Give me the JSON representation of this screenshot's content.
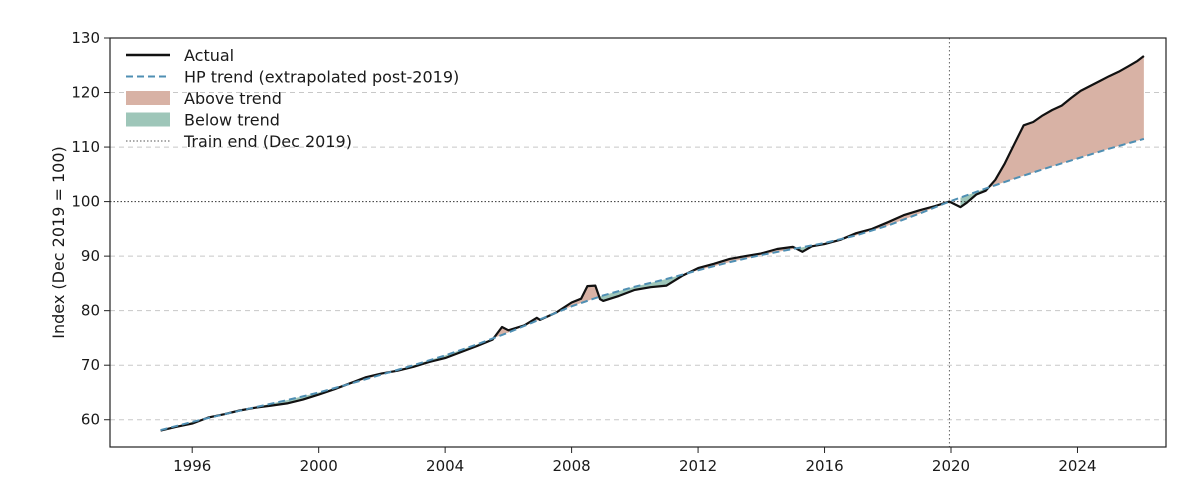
{
  "chart_data": {
    "type": "line",
    "title": "",
    "xlabel": "",
    "ylabel": "Index (Dec 2019 = 100)",
    "xlim": [
      1993.4,
      2026.8
    ],
    "ylim": [
      55,
      130
    ],
    "x_ticks": [
      1996,
      2000,
      2004,
      2008,
      2012,
      2016,
      2020,
      2024
    ],
    "y_ticks": [
      60,
      70,
      80,
      90,
      100,
      110,
      120,
      130
    ],
    "grid": "y-dashed",
    "legend_position": "top-left",
    "reference_lines": {
      "horizontal_y": 100,
      "vertical_x": 2019.95,
      "vertical_label": "Train end (Dec 2019)"
    },
    "legend": [
      {
        "key": "actual",
        "label": "Actual",
        "kind": "line",
        "color": "#111111"
      },
      {
        "key": "trend",
        "label": "HP trend (extrapolated post-2019)",
        "kind": "dashed",
        "color": "#4f8fb3"
      },
      {
        "key": "above",
        "label": "Above trend",
        "kind": "patch",
        "color": "#d8b2a5"
      },
      {
        "key": "below",
        "label": "Below trend",
        "kind": "patch",
        "color": "#9ec6b9"
      },
      {
        "key": "trainend",
        "label": "Train end (Dec 2019)",
        "kind": "dotted",
        "color": "#777777"
      }
    ],
    "series": [
      {
        "name": "Actual",
        "color": "#111111",
        "points": [
          [
            1995.0,
            58.0
          ],
          [
            1995.5,
            58.7
          ],
          [
            1996.0,
            59.3
          ],
          [
            1996.5,
            60.4
          ],
          [
            1997.0,
            61.0
          ],
          [
            1997.5,
            61.7
          ],
          [
            1998.0,
            62.2
          ],
          [
            1998.5,
            62.6
          ],
          [
            1999.0,
            63.0
          ],
          [
            1999.5,
            63.7
          ],
          [
            2000.0,
            64.6
          ],
          [
            2000.5,
            65.6
          ],
          [
            2001.0,
            66.7
          ],
          [
            2001.5,
            67.8
          ],
          [
            2002.0,
            68.5
          ],
          [
            2002.5,
            69.0
          ],
          [
            2003.0,
            69.7
          ],
          [
            2003.5,
            70.6
          ],
          [
            2004.0,
            71.3
          ],
          [
            2004.5,
            72.4
          ],
          [
            2005.0,
            73.5
          ],
          [
            2005.5,
            74.7
          ],
          [
            2005.8,
            77.0
          ],
          [
            2006.0,
            76.4
          ],
          [
            2006.5,
            77.3
          ],
          [
            2006.9,
            78.7
          ],
          [
            2007.0,
            78.3
          ],
          [
            2007.5,
            79.6
          ],
          [
            2008.0,
            81.5
          ],
          [
            2008.3,
            82.2
          ],
          [
            2008.5,
            84.5
          ],
          [
            2008.75,
            84.6
          ],
          [
            2008.9,
            82.1
          ],
          [
            2009.0,
            81.8
          ],
          [
            2009.5,
            82.7
          ],
          [
            2010.0,
            83.8
          ],
          [
            2010.5,
            84.3
          ],
          [
            2011.0,
            84.6
          ],
          [
            2011.5,
            86.4
          ],
          [
            2012.0,
            87.8
          ],
          [
            2012.5,
            88.6
          ],
          [
            2013.0,
            89.5
          ],
          [
            2013.5,
            90.0
          ],
          [
            2014.0,
            90.5
          ],
          [
            2014.5,
            91.3
          ],
          [
            2015.0,
            91.7
          ],
          [
            2015.3,
            90.8
          ],
          [
            2015.6,
            91.8
          ],
          [
            2016.0,
            92.2
          ],
          [
            2016.5,
            93.0
          ],
          [
            2017.0,
            94.2
          ],
          [
            2017.5,
            95.0
          ],
          [
            2018.0,
            96.2
          ],
          [
            2018.5,
            97.5
          ],
          [
            2019.0,
            98.4
          ],
          [
            2019.5,
            99.2
          ],
          [
            2019.95,
            100.0
          ],
          [
            2020.3,
            99.0
          ],
          [
            2020.5,
            99.8
          ],
          [
            2020.8,
            101.3
          ],
          [
            2021.1,
            102.0
          ],
          [
            2021.4,
            104.0
          ],
          [
            2021.7,
            107.0
          ],
          [
            2022.0,
            110.5
          ],
          [
            2022.3,
            114.0
          ],
          [
            2022.6,
            114.6
          ],
          [
            2022.9,
            115.8
          ],
          [
            2023.2,
            116.8
          ],
          [
            2023.5,
            117.6
          ],
          [
            2023.8,
            119.0
          ],
          [
            2024.1,
            120.3
          ],
          [
            2024.4,
            121.2
          ],
          [
            2024.7,
            122.1
          ],
          [
            2025.0,
            123.0
          ],
          [
            2025.3,
            123.8
          ],
          [
            2025.6,
            124.8
          ],
          [
            2025.9,
            125.8
          ],
          [
            2026.1,
            126.7
          ]
        ]
      },
      {
        "name": "HP trend (extrapolated post-2019)",
        "color": "#4f8fb3",
        "points": [
          [
            1995.0,
            58.1
          ],
          [
            1996.0,
            59.6
          ],
          [
            1997.0,
            61.0
          ],
          [
            1998.0,
            62.3
          ],
          [
            1999.0,
            63.6
          ],
          [
            2000.0,
            65.0
          ],
          [
            2001.0,
            66.6
          ],
          [
            2002.0,
            68.3
          ],
          [
            2003.0,
            70.0
          ],
          [
            2004.0,
            71.8
          ],
          [
            2005.0,
            73.8
          ],
          [
            2006.0,
            76.0
          ],
          [
            2007.0,
            78.4
          ],
          [
            2008.0,
            80.8
          ],
          [
            2009.0,
            82.8
          ],
          [
            2010.0,
            84.4
          ],
          [
            2011.0,
            85.8
          ],
          [
            2012.0,
            87.4
          ],
          [
            2013.0,
            88.9
          ],
          [
            2014.0,
            90.2
          ],
          [
            2015.0,
            91.3
          ],
          [
            2016.0,
            92.4
          ],
          [
            2017.0,
            93.8
          ],
          [
            2018.0,
            95.6
          ],
          [
            2019.0,
            97.8
          ],
          [
            2019.95,
            100.0
          ],
          [
            2021.0,
            102.2
          ],
          [
            2022.0,
            104.2
          ],
          [
            2023.0,
            106.1
          ],
          [
            2024.0,
            107.9
          ],
          [
            2025.0,
            109.7
          ],
          [
            2026.1,
            111.5
          ]
        ]
      }
    ]
  }
}
